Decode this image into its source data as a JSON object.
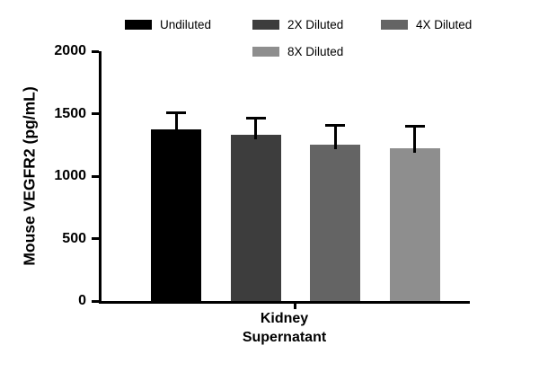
{
  "chart_data": {
    "type": "bar",
    "title": "",
    "ylabel": "Mouse VEGFR2 (pg/mL)",
    "xlabel": "Kidney\nSupernatant",
    "ylim": [
      0,
      2000
    ],
    "yticks": [
      0,
      500,
      1000,
      1500,
      2000
    ],
    "categories": [
      "Kidney Supernatant"
    ],
    "series": [
      {
        "name": "Undiluted",
        "value": 1375,
        "sd": 135,
        "color": "#000000"
      },
      {
        "name": "2X Diluted",
        "value": 1330,
        "sd": 135,
        "color": "#3d3d3d"
      },
      {
        "name": "4X Diluted",
        "value": 1250,
        "sd": 160,
        "color": "#646464"
      },
      {
        "name": "8X Diluted",
        "value": 1225,
        "sd": 175,
        "color": "#8e8e8e"
      }
    ],
    "legend_position": "top",
    "grid": false,
    "axis_color": "#000000",
    "background_color": "#ffffff"
  }
}
